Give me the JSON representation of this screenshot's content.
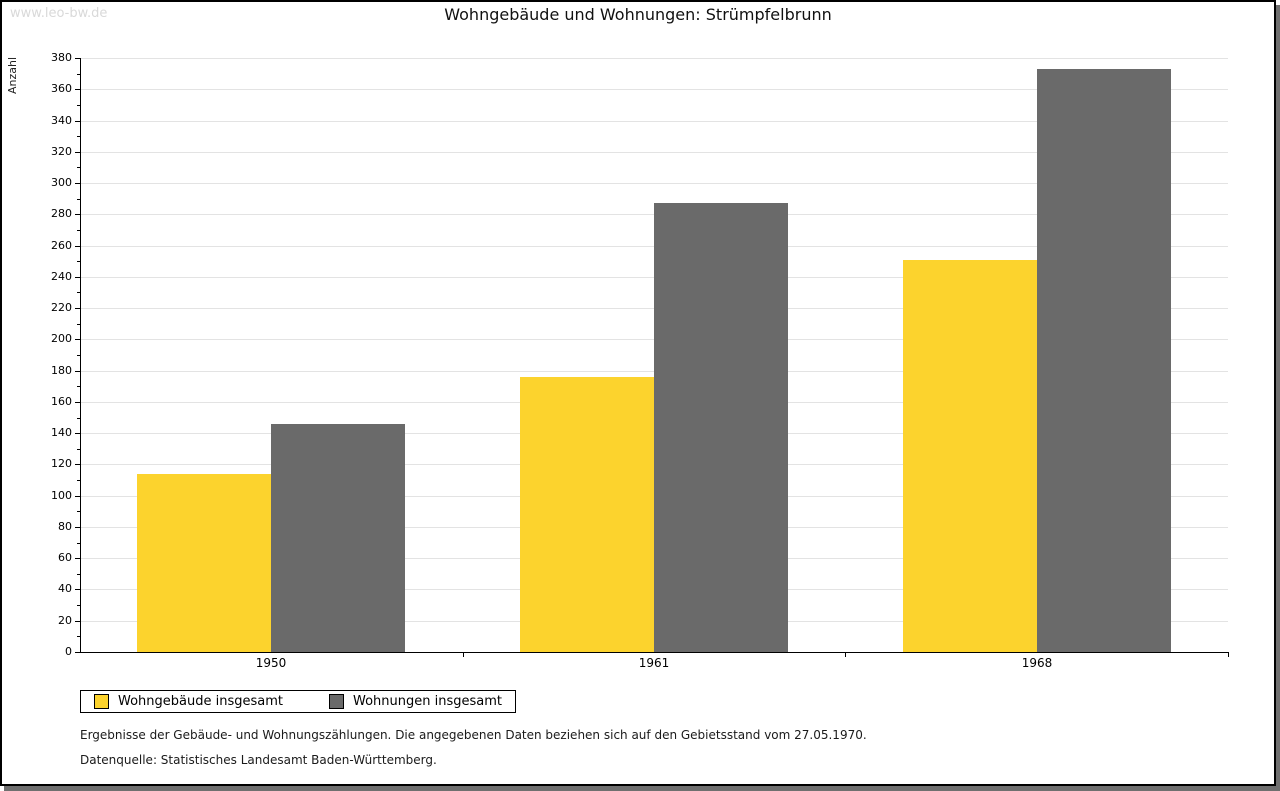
{
  "watermark": "www.leo-bw.de",
  "title": "Wohngebäude und Wohnungen: Strümpfelbrunn",
  "footnotes": [
    "Ergebnisse der Gebäude- und Wohnungszählungen. Die angegebenen Daten beziehen sich auf den Gebietsstand vom 27.05.1970.",
    "Datenquelle: Statistisches Landesamt Baden-Württemberg."
  ],
  "chart_data": {
    "type": "bar",
    "title": "Wohngebäude und Wohnungen: Strümpfelbrunn",
    "categories": [
      "1950",
      "1961",
      "1968"
    ],
    "series": [
      {
        "name": "Wohngebäude insgesamt",
        "color": "#FCD32D",
        "values": [
          114,
          176,
          251
        ]
      },
      {
        "name": "Wohnungen insgesamt",
        "color": "#6A6A6A",
        "values": [
          146,
          287,
          373
        ]
      }
    ],
    "xlabel": "",
    "ylabel": "Anzahl",
    "ylim": [
      0,
      380
    ],
    "ytick_major": 20,
    "ytick_minor": 10,
    "grid": true,
    "legend_position": "bottom-left"
  }
}
